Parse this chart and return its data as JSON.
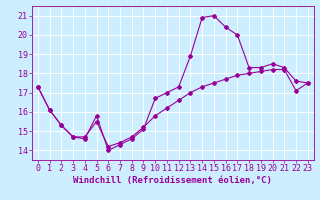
{
  "xlabel": "Windchill (Refroidissement éolien,°C)",
  "bg_color": "#cceeff",
  "line_color": "#990099",
  "grid_color": "#ffffff",
  "x_values": [
    0,
    1,
    2,
    3,
    4,
    5,
    6,
    7,
    8,
    9,
    10,
    11,
    12,
    13,
    14,
    15,
    16,
    17,
    18,
    19,
    20,
    21,
    22,
    23
  ],
  "y_values_upper": [
    17.3,
    16.1,
    15.3,
    14.7,
    14.6,
    15.8,
    14.0,
    14.3,
    14.6,
    15.1,
    16.7,
    17.0,
    17.3,
    18.9,
    20.9,
    21.0,
    20.4,
    20.0,
    18.3,
    18.3,
    18.5,
    18.3,
    17.6,
    17.5
  ],
  "y_values_lower": [
    17.3,
    16.1,
    15.3,
    14.7,
    14.7,
    15.5,
    14.2,
    14.4,
    14.7,
    15.2,
    15.8,
    16.2,
    16.6,
    17.0,
    17.3,
    17.5,
    17.7,
    17.9,
    18.0,
    18.1,
    18.2,
    18.2,
    17.1,
    17.5
  ],
  "xlim": [
    -0.5,
    23.5
  ],
  "ylim": [
    13.5,
    21.5
  ],
  "yticks": [
    14,
    15,
    16,
    17,
    18,
    19,
    20,
    21
  ],
  "xticks": [
    0,
    1,
    2,
    3,
    4,
    5,
    6,
    7,
    8,
    9,
    10,
    11,
    12,
    13,
    14,
    15,
    16,
    17,
    18,
    19,
    20,
    21,
    22,
    23
  ],
  "marker": "D",
  "markersize": 2.0,
  "linewidth": 0.8,
  "xlabel_fontsize": 6.5,
  "tick_fontsize": 6.0
}
